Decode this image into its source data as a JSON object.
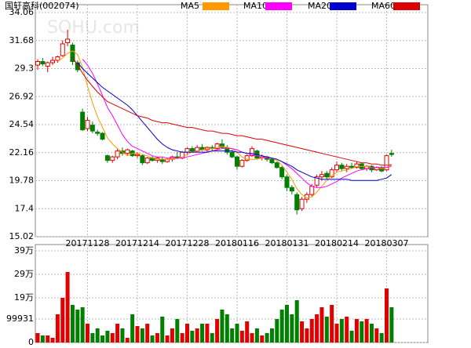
{
  "chart_data": {
    "type": "candlestick",
    "title": "国轩高科(002074)",
    "watermark": "SOHU.com",
    "categories": [
      null,
      null,
      null,
      null,
      null,
      null,
      null,
      null,
      null,
      null,
      "20171128",
      null,
      null,
      null,
      null,
      null,
      null,
      null,
      null,
      null,
      "20171214",
      null,
      null,
      null,
      null,
      null,
      null,
      null,
      null,
      null,
      "20171228",
      null,
      null,
      null,
      null,
      null,
      null,
      null,
      null,
      null,
      "20180116",
      null,
      null,
      null,
      null,
      null,
      null,
      null,
      null,
      null,
      "20180131",
      null,
      null,
      null,
      null,
      null,
      null,
      null,
      null,
      null,
      "20180214",
      null,
      null,
      null,
      null,
      null,
      null,
      null,
      null,
      null,
      "20180307",
      null
    ],
    "up_color": "#e00000",
    "down_color": "#008000",
    "ohlc": [
      [
        29.6,
        30.1,
        29.2,
        29.9
      ],
      [
        29.9,
        30.2,
        29.5,
        29.7
      ],
      [
        29.5,
        29.9,
        29.0,
        29.8
      ],
      [
        29.8,
        30.3,
        29.6,
        30.0
      ],
      [
        30.0,
        30.4,
        29.8,
        30.3
      ],
      [
        30.4,
        31.7,
        30.3,
        31.4
      ],
      [
        31.5,
        32.6,
        31.2,
        31.8
      ],
      [
        31.3,
        31.5,
        29.6,
        29.9
      ],
      [
        29.8,
        30.0,
        29.0,
        29.2
      ],
      [
        25.6,
        25.9,
        24.0,
        24.1
      ],
      [
        24.2,
        25.2,
        24.0,
        24.9
      ],
      [
        24.5,
        24.8,
        23.8,
        24.0
      ],
      [
        23.9,
        24.1,
        23.6,
        23.8
      ],
      [
        23.8,
        23.9,
        23.2,
        23.3
      ],
      [
        21.9,
        22.0,
        21.3,
        21.5
      ],
      [
        21.5,
        21.9,
        21.3,
        21.8
      ],
      [
        21.8,
        22.5,
        21.6,
        22.3
      ],
      [
        22.3,
        22.6,
        21.9,
        22.1
      ],
      [
        22.1,
        22.5,
        21.9,
        22.4
      ],
      [
        22.3,
        22.4,
        21.8,
        21.9
      ],
      [
        21.9,
        22.2,
        21.7,
        22.0
      ],
      [
        21.9,
        22.0,
        21.1,
        21.3
      ],
      [
        21.3,
        21.8,
        21.2,
        21.7
      ],
      [
        21.7,
        21.9,
        21.4,
        21.5
      ],
      [
        21.5,
        21.8,
        21.3,
        21.7
      ],
      [
        21.6,
        21.8,
        21.2,
        21.4
      ],
      [
        21.4,
        21.7,
        21.3,
        21.6
      ],
      [
        21.6,
        21.9,
        21.4,
        21.8
      ],
      [
        21.8,
        22.2,
        21.6,
        21.7
      ],
      [
        21.7,
        22.3,
        21.6,
        22.2
      ],
      [
        22.2,
        22.6,
        22.0,
        22.5
      ],
      [
        22.5,
        22.7,
        22.2,
        22.3
      ],
      [
        22.3,
        22.8,
        22.2,
        22.6
      ],
      [
        22.6,
        22.9,
        22.3,
        22.4
      ],
      [
        22.4,
        22.7,
        22.2,
        22.6
      ],
      [
        22.6,
        22.8,
        22.3,
        22.5
      ],
      [
        22.5,
        23.0,
        22.4,
        22.9
      ],
      [
        22.9,
        23.3,
        22.5,
        22.6
      ],
      [
        22.6,
        22.8,
        22.0,
        22.2
      ],
      [
        22.2,
        22.4,
        21.7,
        21.8
      ],
      [
        21.8,
        21.9,
        20.7,
        21.0
      ],
      [
        21.0,
        21.6,
        20.9,
        21.5
      ],
      [
        21.5,
        22.0,
        21.4,
        21.9
      ],
      [
        21.9,
        22.7,
        21.8,
        22.5
      ],
      [
        22.3,
        22.4,
        21.6,
        21.7
      ],
      [
        21.7,
        22.0,
        21.5,
        21.8
      ],
      [
        21.8,
        21.9,
        21.4,
        21.6
      ],
      [
        21.6,
        21.7,
        21.2,
        21.3
      ],
      [
        21.3,
        21.4,
        20.8,
        20.9
      ],
      [
        20.9,
        21.0,
        19.9,
        20.1
      ],
      [
        20.1,
        20.3,
        18.9,
        19.2
      ],
      [
        19.2,
        19.4,
        18.6,
        18.9
      ],
      [
        18.6,
        18.8,
        16.9,
        17.3
      ],
      [
        17.4,
        18.4,
        17.2,
        18.2
      ],
      [
        18.2,
        18.8,
        17.9,
        18.6
      ],
      [
        18.6,
        19.5,
        18.4,
        19.3
      ],
      [
        19.4,
        20.3,
        19.2,
        20.1
      ],
      [
        20.1,
        20.6,
        19.8,
        20.3
      ],
      [
        20.4,
        20.6,
        19.9,
        20.1
      ],
      [
        20.1,
        20.9,
        20.0,
        20.7
      ],
      [
        20.7,
        21.4,
        20.5,
        21.1
      ],
      [
        21.1,
        21.3,
        20.6,
        20.8
      ],
      [
        20.8,
        21.2,
        20.5,
        21.0
      ],
      [
        21.0,
        21.3,
        20.8,
        20.9
      ],
      [
        20.9,
        21.4,
        20.8,
        21.2
      ],
      [
        21.2,
        21.3,
        20.7,
        20.8
      ],
      [
        20.8,
        21.1,
        20.6,
        21.0
      ],
      [
        21.0,
        21.1,
        20.5,
        20.7
      ],
      [
        20.7,
        21.0,
        20.6,
        20.9
      ],
      [
        20.9,
        21.0,
        20.5,
        20.6
      ],
      [
        20.7,
        22.0,
        20.6,
        21.9
      ],
      [
        22.1,
        22.4,
        21.8,
        22.0
      ]
    ],
    "ma": [
      {
        "name": "MA5",
        "color": "#ff9900",
        "values": [
          null,
          null,
          null,
          null,
          29.9,
          30.2,
          30.6,
          30.8,
          30.5,
          29.4,
          27.8,
          26.4,
          25.2,
          24.3,
          23.4,
          22.9,
          22.5,
          22.2,
          21.9,
          22.1,
          22.1,
          22.0,
          21.9,
          21.7,
          21.6,
          21.6,
          21.6,
          21.6,
          21.7,
          21.8,
          22.0,
          22.2,
          22.3,
          22.4,
          22.5,
          22.5,
          22.6,
          22.7,
          22.6,
          22.5,
          22.2,
          21.8,
          21.6,
          21.6,
          21.6,
          21.7,
          21.8,
          21.7,
          21.5,
          21.1,
          20.5,
          19.9,
          19.1,
          18.6,
          18.3,
          18.4,
          18.8,
          19.3,
          19.8,
          20.2,
          20.5,
          20.6,
          20.7,
          20.8,
          21.0,
          21.0,
          21.0,
          20.9,
          20.9,
          20.8,
          20.9,
          21.2
        ]
      },
      {
        "name": "MA10",
        "color": "#ff00ff",
        "values": [
          null,
          null,
          null,
          null,
          null,
          null,
          null,
          null,
          null,
          30.1,
          29.6,
          28.9,
          28.0,
          27.0,
          26.0,
          25.3,
          24.5,
          23.7,
          23.1,
          22.7,
          22.5,
          22.3,
          22.1,
          21.9,
          21.8,
          21.8,
          21.7,
          21.7,
          21.7,
          21.7,
          21.8,
          21.9,
          22.0,
          22.1,
          22.2,
          22.3,
          22.4,
          22.5,
          22.5,
          22.5,
          22.4,
          22.2,
          22.1,
          22.0,
          21.9,
          21.8,
          21.7,
          21.7,
          21.6,
          21.4,
          21.1,
          20.8,
          20.4,
          20.0,
          19.6,
          19.3,
          19.2,
          19.2,
          19.3,
          19.5,
          19.7,
          20.0,
          20.2,
          20.4,
          20.6,
          20.7,
          20.8,
          20.9,
          20.9,
          20.9,
          20.9,
          21.0
        ]
      },
      {
        "name": "MA20",
        "color": "#0000cc",
        "values": [
          null,
          null,
          null,
          null,
          null,
          null,
          null,
          null,
          29.8,
          29.3,
          28.9,
          28.5,
          28.1,
          27.7,
          27.4,
          27.1,
          26.8,
          26.5,
          26.2,
          25.8,
          25.3,
          24.8,
          24.3,
          23.8,
          23.3,
          22.9,
          22.6,
          22.4,
          22.3,
          22.2,
          22.2,
          22.2,
          22.2,
          22.2,
          22.2,
          22.3,
          22.3,
          22.3,
          22.3,
          22.3,
          22.2,
          22.2,
          22.1,
          22.1,
          22.0,
          21.9,
          21.8,
          21.7,
          21.6,
          21.4,
          21.2,
          21.0,
          20.7,
          20.5,
          20.3,
          20.1,
          20.0,
          19.9,
          19.9,
          19.9,
          19.9,
          19.9,
          19.9,
          19.8,
          19.8,
          19.8,
          19.8,
          19.8,
          19.8,
          19.9,
          20.0,
          20.3
        ]
      },
      {
        "name": "MA60",
        "color": "#dd0000",
        "values": [
          null,
          null,
          null,
          null,
          null,
          null,
          null,
          30.3,
          29.6,
          28.9,
          28.3,
          27.8,
          27.3,
          26.9,
          26.5,
          26.3,
          26.1,
          25.9,
          25.7,
          25.5,
          25.3,
          25.2,
          25.1,
          24.9,
          24.8,
          24.7,
          24.7,
          24.6,
          24.5,
          24.4,
          24.3,
          24.3,
          24.2,
          24.1,
          24.0,
          24.0,
          23.9,
          23.8,
          23.8,
          23.7,
          23.6,
          23.6,
          23.5,
          23.4,
          23.3,
          23.3,
          23.2,
          23.1,
          23.0,
          22.9,
          22.8,
          22.7,
          22.6,
          22.5,
          22.4,
          22.3,
          22.2,
          22.1,
          22.0,
          21.9,
          21.8,
          21.7,
          21.6,
          21.5,
          21.4,
          21.3,
          21.3,
          21.2,
          21.2,
          21.1,
          21.1,
          21.1
        ]
      }
    ],
    "ylim": [
      15.02,
      34.06
    ],
    "yticks": [
      15.02,
      17.4,
      19.78,
      22.16,
      24.54,
      26.92,
      29.3,
      31.68,
      34.06
    ],
    "volume": [
      40000,
      30000,
      30000,
      20000,
      120000,
      190000,
      300000,
      160000,
      140000,
      150000,
      80000,
      40000,
      60000,
      30000,
      50000,
      40000,
      80000,
      60000,
      20000,
      120000,
      70000,
      60000,
      80000,
      30000,
      40000,
      110000,
      30000,
      60000,
      100000,
      40000,
      80000,
      50000,
      60000,
      80000,
      80000,
      40000,
      100000,
      140000,
      120000,
      60000,
      80000,
      50000,
      90000,
      40000,
      60000,
      30000,
      40000,
      60000,
      100000,
      140000,
      160000,
      120000,
      180000,
      90000,
      60000,
      100000,
      120000,
      150000,
      110000,
      160000,
      80000,
      100000,
      110000,
      50000,
      100000,
      90000,
      100000,
      80000,
      60000,
      40000,
      230000,
      150000
    ],
    "vlim": [
      0,
      390000
    ],
    "vticks": [
      0,
      99931,
      {
        "value": 190000,
        "label": "19万"
      },
      {
        "value": 290000,
        "label": "29万"
      },
      {
        "value": 390000,
        "label": "39万"
      }
    ],
    "grid": true
  }
}
